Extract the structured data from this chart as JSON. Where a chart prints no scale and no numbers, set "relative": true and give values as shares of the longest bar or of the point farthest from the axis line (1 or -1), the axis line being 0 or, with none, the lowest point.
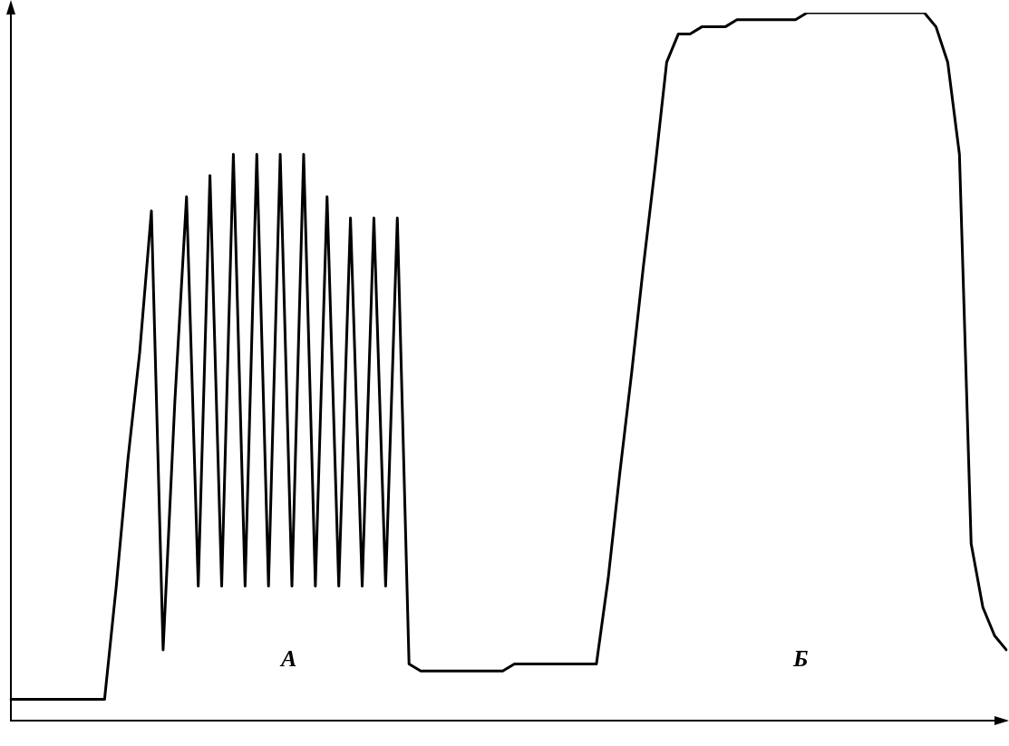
{
  "chart_data": {
    "type": "line",
    "relative": true,
    "color": "#000000",
    "grid": false,
    "legend": false,
    "marker": "none",
    "line_style": "solid",
    "categories": [
      null,
      null,
      null,
      null,
      null,
      null,
      null,
      null,
      null,
      null,
      null,
      null,
      null,
      null,
      null,
      null,
      null,
      null,
      null,
      null,
      null,
      null,
      null,
      null,
      null,
      null,
      null,
      null,
      null,
      null,
      null,
      null,
      null,
      null,
      null,
      null,
      null,
      null,
      null,
      null,
      null,
      null,
      null,
      null,
      null,
      null,
      null,
      null,
      null,
      null,
      null,
      null,
      null,
      null,
      null,
      null,
      null,
      null,
      null,
      null,
      null,
      null,
      null,
      null,
      null,
      null,
      null,
      null,
      null,
      null,
      null,
      null,
      null,
      null,
      null,
      null,
      null,
      null,
      null,
      null,
      null,
      null,
      null,
      null,
      null,
      null
    ],
    "values": [
      0.03,
      0.03,
      0.03,
      0.03,
      0.03,
      0.03,
      0.03,
      0.03,
      0.03,
      0.19,
      0.37,
      0.52,
      0.72,
      0.1,
      0.45,
      0.74,
      0.19,
      0.77,
      0.19,
      0.8,
      0.19,
      0.8,
      0.19,
      0.8,
      0.19,
      0.8,
      0.19,
      0.74,
      0.19,
      0.71,
      0.19,
      0.71,
      0.19,
      0.71,
      0.08,
      0.07,
      0.07,
      0.07,
      0.07,
      0.07,
      0.07,
      0.07,
      0.07,
      0.08,
      0.08,
      0.08,
      0.08,
      0.08,
      0.08,
      0.08,
      0.08,
      0.2,
      0.35,
      0.49,
      0.64,
      0.78,
      0.93,
      0.97,
      0.97,
      0.98,
      0.98,
      0.98,
      0.99,
      0.99,
      0.99,
      0.99,
      0.99,
      0.99,
      1,
      1,
      1,
      1,
      1,
      1,
      1,
      1,
      1,
      1,
      1,
      0.98,
      0.93,
      0.8,
      0.25,
      0.16,
      0.12,
      0.1
    ],
    "annotations": [
      "А",
      "Б"
    ]
  }
}
